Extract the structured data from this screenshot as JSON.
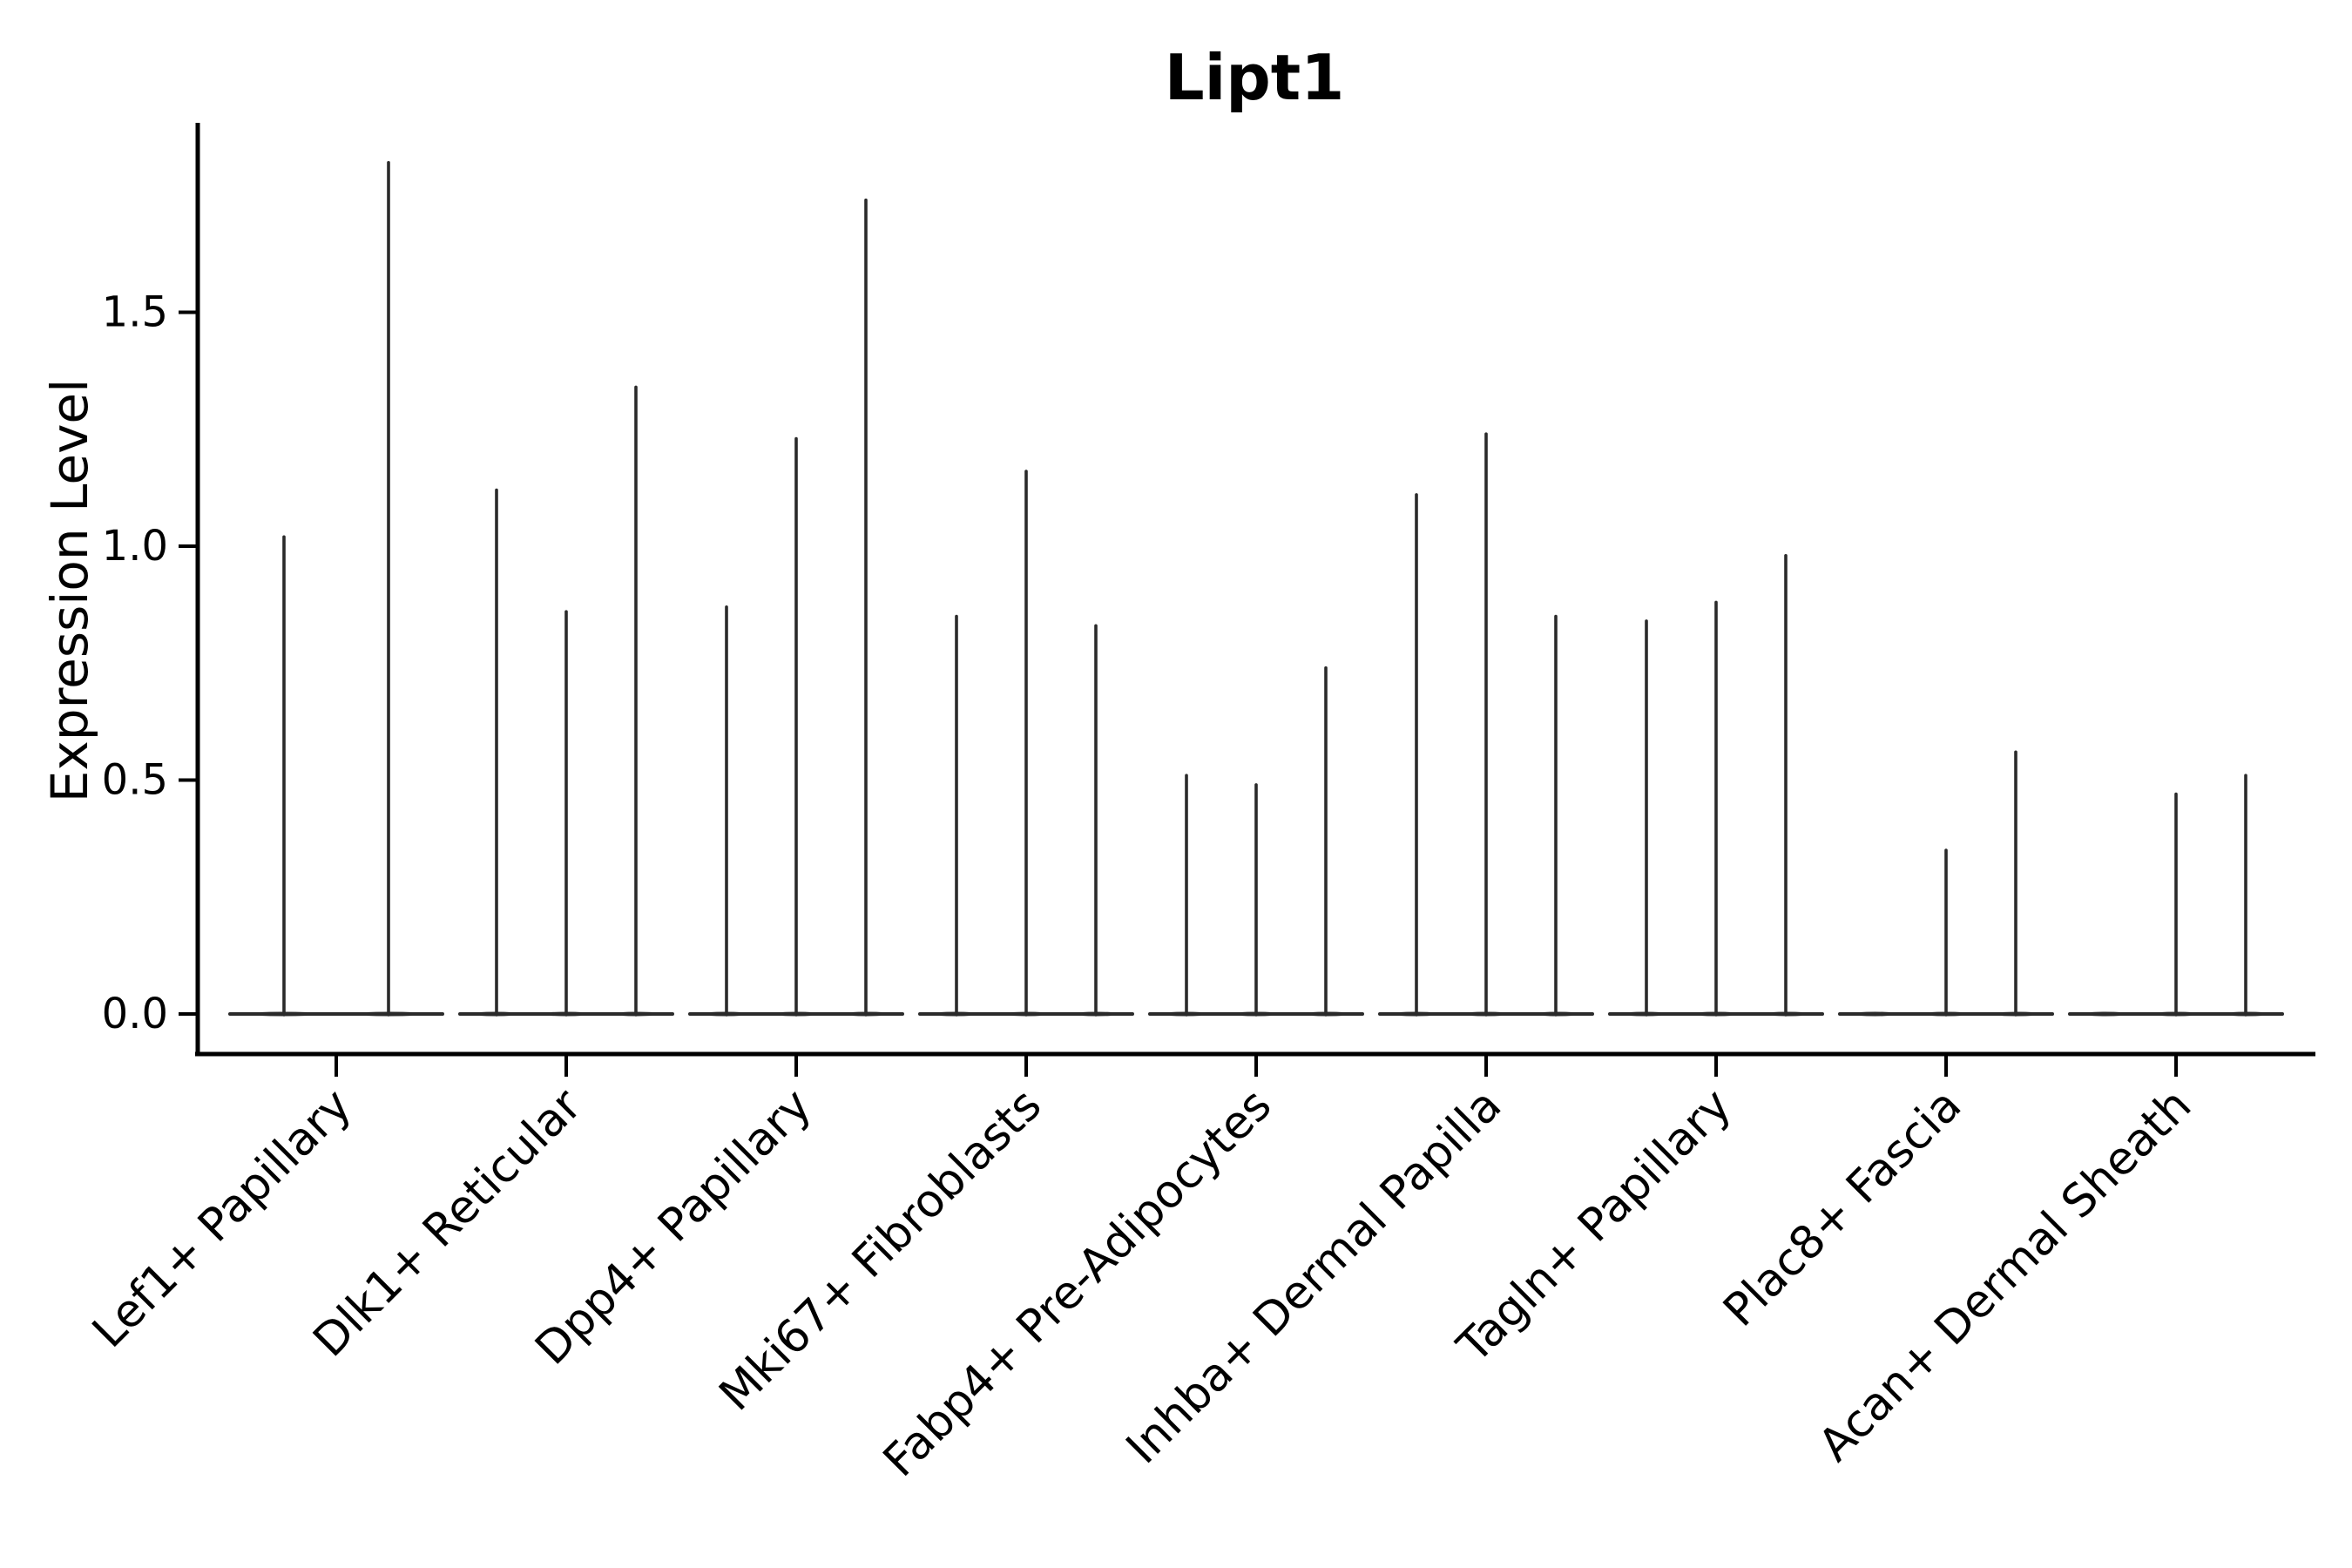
{
  "figure": {
    "title": "Lipt1",
    "ylabel": "Expression Level"
  },
  "style": {
    "background": "#ffffff",
    "axis_color": "#000000",
    "violin_color": "#2a2a2a",
    "text_color": "#000000"
  },
  "chart_data": {
    "type": "violin",
    "title": "Lipt1",
    "xlabel": "",
    "ylabel": "Expression Level",
    "ylim": [
      -0.09,
      1.91
    ],
    "yticks": [
      0.0,
      0.5,
      1.0,
      1.5
    ],
    "ytick_labels": [
      "0.0",
      "0.5",
      "1.0",
      "1.5"
    ],
    "grid": false,
    "legend": "none",
    "x_tick_rotation": 45,
    "categories": [
      "Lef1+ Papillary",
      "Dlk1+ Reticular",
      "Dpp4+ Papillary",
      "Mki67+ Fibroblasts",
      "Fabp4+ Pre-Adipocytes",
      "Inhba+ Dermal Papilla",
      "Tagln+ Papillary",
      "Plac8+ Fascia",
      "Acan+ Dermal Sheath"
    ],
    "description": "Violin plot of Lipt1 expression; each category shows 2-3 needle-thin violins collapsed at 0 with single spikes reaching the maximum expression value.",
    "groups": [
      {
        "label": "Lef1+ Papillary",
        "violins": [
          {
            "offset": -60,
            "max": 1.02
          },
          {
            "offset": 60,
            "max": 1.82
          }
        ]
      },
      {
        "label": "Dlk1+ Reticular",
        "violins": [
          {
            "offset": -80,
            "max": 1.12
          },
          {
            "offset": 0,
            "max": 0.86
          },
          {
            "offset": 80,
            "max": 1.34
          }
        ]
      },
      {
        "label": "Dpp4+ Papillary",
        "violins": [
          {
            "offset": -80,
            "max": 0.87
          },
          {
            "offset": 0,
            "max": 1.23
          },
          {
            "offset": 80,
            "max": 1.74
          }
        ]
      },
      {
        "label": "Mki67+ Fibroblasts",
        "violins": [
          {
            "offset": -80,
            "max": 0.85
          },
          {
            "offset": 0,
            "max": 1.16
          },
          {
            "offset": 80,
            "max": 0.83
          }
        ]
      },
      {
        "label": "Fabp4+ Pre-Adipocytes",
        "violins": [
          {
            "offset": -80,
            "max": 0.51
          },
          {
            "offset": 0,
            "max": 0.49
          },
          {
            "offset": 80,
            "max": 0.74
          }
        ]
      },
      {
        "label": "Inhba+ Dermal Papilla",
        "violins": [
          {
            "offset": -80,
            "max": 1.11
          },
          {
            "offset": 0,
            "max": 1.24
          },
          {
            "offset": 80,
            "max": 0.85
          }
        ]
      },
      {
        "label": "Tagln+ Papillary",
        "violins": [
          {
            "offset": -80,
            "max": 0.84
          },
          {
            "offset": 0,
            "max": 0.88
          },
          {
            "offset": 80,
            "max": 0.98
          }
        ]
      },
      {
        "label": "Plac8+ Fascia",
        "violins": [
          {
            "offset": -80,
            "max": 0.0
          },
          {
            "offset": 0,
            "max": 0.35
          },
          {
            "offset": 80,
            "max": 0.56
          }
        ]
      },
      {
        "label": "Acan+ Dermal Sheath",
        "violins": [
          {
            "offset": -80,
            "max": 0.0
          },
          {
            "offset": 0,
            "max": 0.47
          },
          {
            "offset": 80,
            "max": 0.51
          }
        ]
      }
    ]
  }
}
